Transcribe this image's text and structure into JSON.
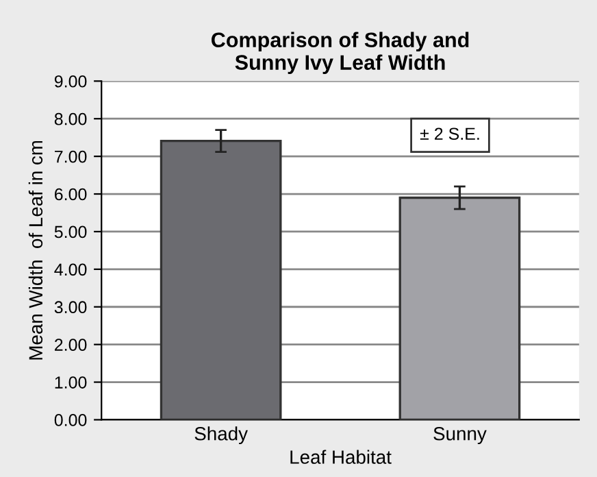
{
  "chart_data": {
    "type": "bar",
    "title": "Comparison of Shady and\nSunny Ivy Leaf Width",
    "xlabel": "Leaf Habitat",
    "ylabel": "Mean Width  of Leaf in cm",
    "categories": [
      "Shady",
      "Sunny"
    ],
    "values": [
      7.41,
      5.9
    ],
    "colors": [
      "#6b6b70",
      "#a2a2a7"
    ],
    "errors": [
      0.29,
      0.3
    ],
    "ylim": [
      0,
      9
    ],
    "yticks": [
      {
        "value": 0,
        "label": "0.00"
      },
      {
        "value": 1,
        "label": "1.00"
      },
      {
        "value": 2,
        "label": "2.00"
      },
      {
        "value": 3,
        "label": "3.00"
      },
      {
        "value": 4,
        "label": "4.00"
      },
      {
        "value": 5,
        "label": "5.00"
      },
      {
        "value": 6,
        "label": "6.00"
      },
      {
        "value": 7,
        "label": "7.00"
      },
      {
        "value": 8,
        "label": "8.00"
      },
      {
        "value": 9,
        "label": "9.00"
      }
    ],
    "grid": "y",
    "annotations": [
      "± 2 S.E."
    ]
  }
}
